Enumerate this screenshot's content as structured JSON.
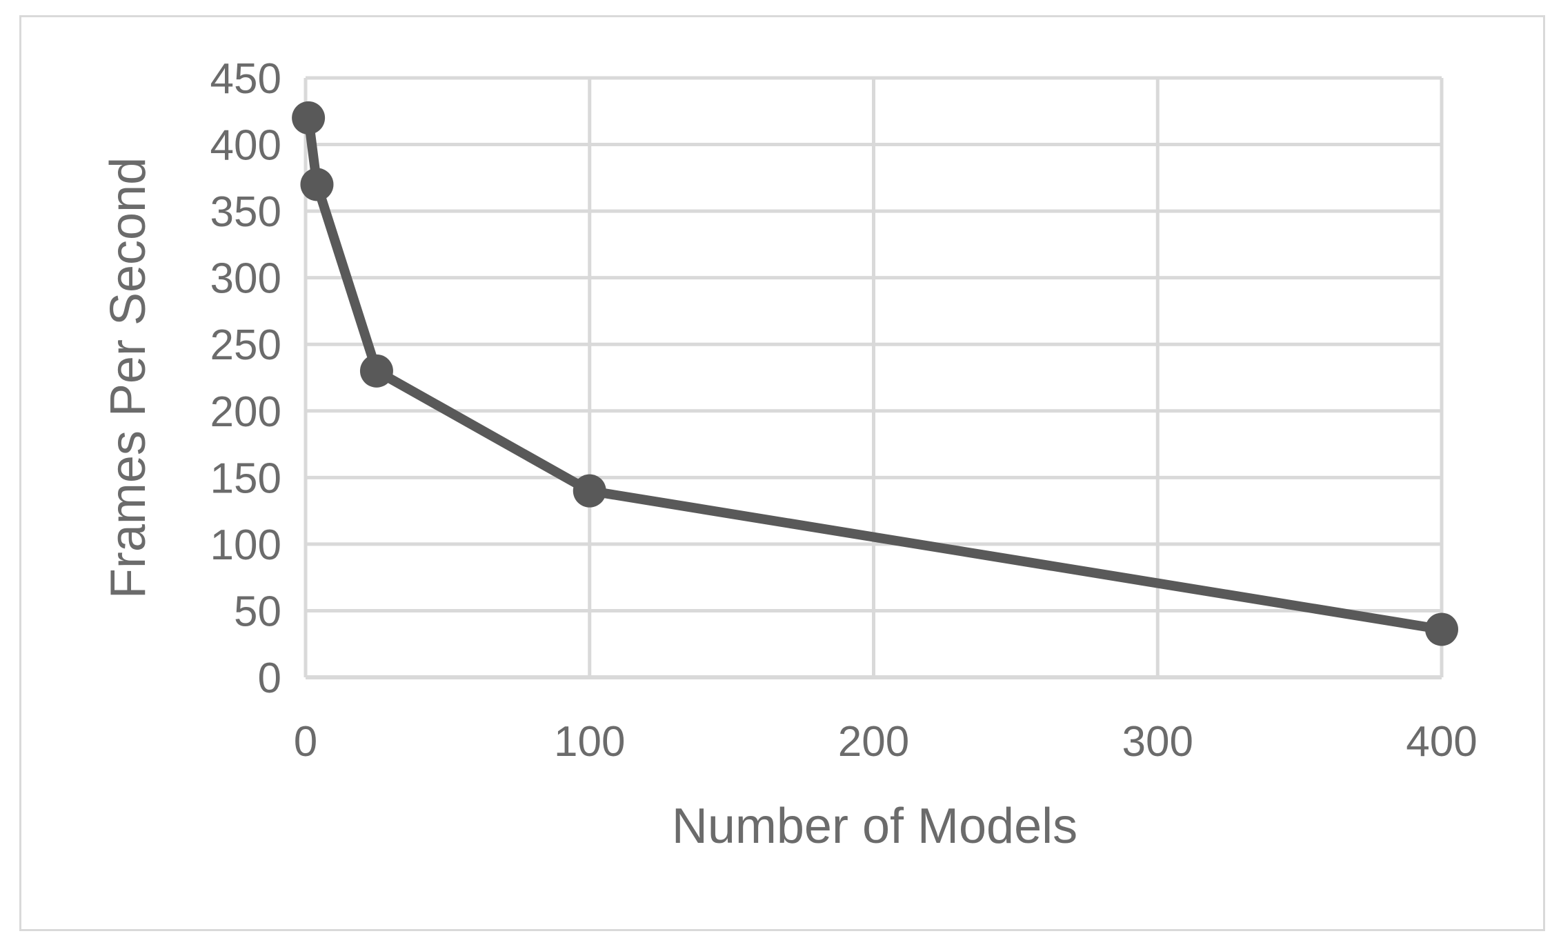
{
  "chart_data": {
    "type": "scatter",
    "xlabel": "Number of Models",
    "ylabel": "Frames Per Second",
    "xlim": [
      0,
      400
    ],
    "ylim": [
      0,
      450
    ],
    "x_ticks": [
      0,
      100,
      200,
      300,
      400
    ],
    "y_ticks": [
      0,
      50,
      100,
      150,
      200,
      250,
      300,
      350,
      400,
      450
    ],
    "grid": true,
    "legend": "none",
    "markers": true,
    "line_style": "solid",
    "series": [
      {
        "color": "#595959",
        "x": [
          1,
          4,
          25,
          100,
          400
        ],
        "y": [
          420,
          370,
          230,
          140,
          36
        ]
      }
    ]
  },
  "colors": {
    "series": "#595959",
    "grid": "#d9d9d9",
    "text": "#6b6b6b",
    "frame": "#d9d9d9"
  }
}
